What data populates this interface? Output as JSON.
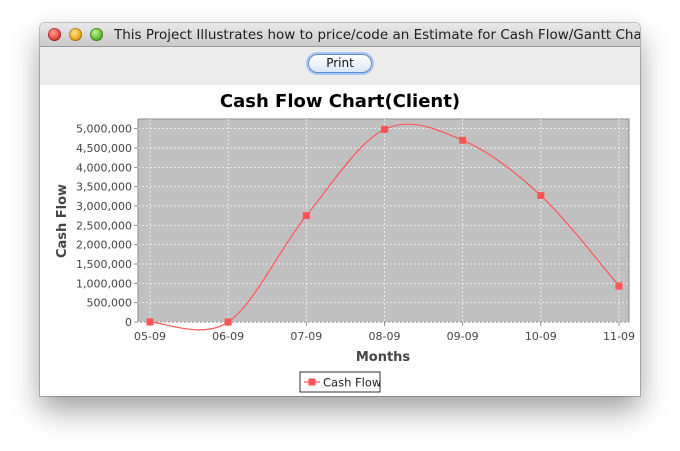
{
  "window": {
    "title": "This Project Illustrates how to price/code an Estimate for Cash Flow/Gantt Charts"
  },
  "toolbar": {
    "print_label": "Print"
  },
  "colors": {
    "plot_bg": "#c0c0c0",
    "series": "#ff5555",
    "grid": "#ffffff"
  },
  "chart_data": {
    "type": "line",
    "title": "Cash Flow Chart(Client)",
    "xlabel": "Months",
    "ylabel": "Cash Flow",
    "categories": [
      "05-09",
      "06-09",
      "07-09",
      "08-09",
      "09-09",
      "10-09",
      "11-09"
    ],
    "ylim": [
      0,
      5250000
    ],
    "yticks": [
      "0",
      "500,000",
      "1,000,000",
      "1,500,000",
      "2,000,000",
      "2,500,000",
      "3,000,000",
      "3,500,000",
      "4,000,000",
      "4,500,000",
      "5,000,000"
    ],
    "series": [
      {
        "name": "Cash Flow",
        "values": [
          0,
          0,
          2750000,
          4980000,
          4700000,
          3270000,
          930000
        ]
      }
    ],
    "grid": true,
    "legend": "bottom-center",
    "smoothed": true
  }
}
